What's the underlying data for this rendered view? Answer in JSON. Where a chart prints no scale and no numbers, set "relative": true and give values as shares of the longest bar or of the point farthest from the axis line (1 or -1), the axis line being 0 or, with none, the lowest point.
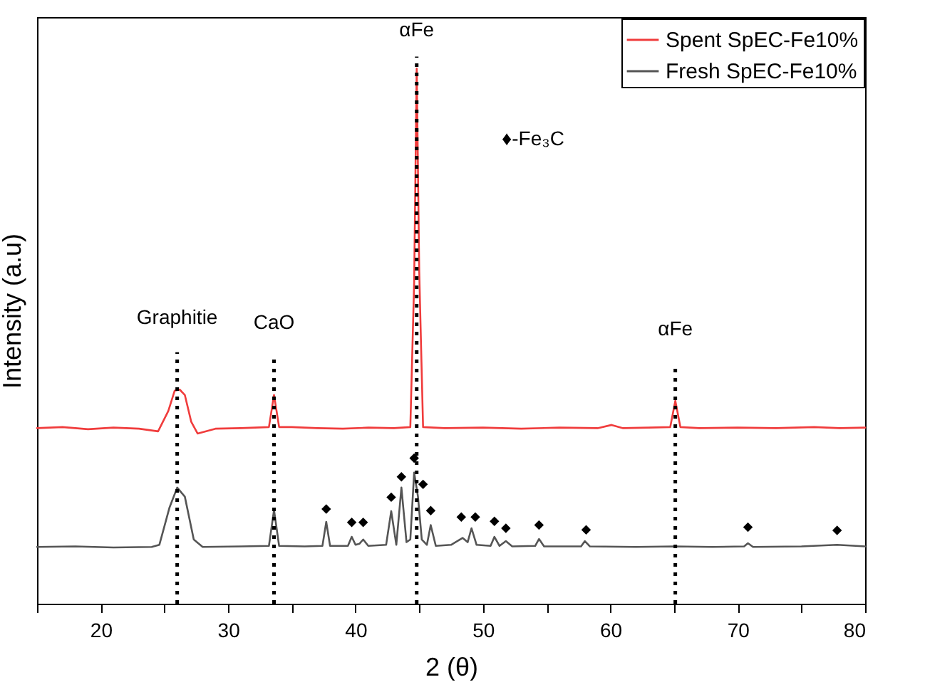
{
  "chart_data": {
    "type": "line",
    "xlabel": "2 (θ)",
    "ylabel": "Intensity (a.u)",
    "relative": true,
    "xlim": [
      15,
      80
    ],
    "xticks": [
      {
        "value": 15,
        "label": null
      },
      20,
      {
        "value": 25,
        "label": null
      },
      30,
      {
        "value": 35,
        "label": null
      },
      40,
      {
        "value": 45,
        "label": null
      },
      50,
      {
        "value": 55,
        "label": null
      },
      60,
      {
        "value": 65,
        "label": null
      },
      70,
      {
        "value": 75,
        "label": null
      },
      80
    ],
    "grid": false,
    "legend": "top right",
    "line_style": "solid",
    "series": [
      {
        "name": "Spent SpEC-Fe10%",
        "color": "#f03c3c",
        "x": [
          15,
          17,
          19,
          21,
          23,
          24.5,
          25.3,
          25.8,
          26.2,
          26.6,
          27.1,
          27.6,
          29,
          31,
          33.2,
          33.6,
          34.0,
          35,
          37,
          39,
          41,
          43,
          44.3,
          44.6,
          44.8,
          45.0,
          45.3,
          47,
          50,
          53,
          56,
          59,
          60.1,
          61,
          63,
          64.7,
          65.1,
          65.5,
          67,
          70,
          73,
          76,
          78,
          80
        ],
        "values": [
          0.328,
          0.33,
          0.326,
          0.329,
          0.327,
          0.322,
          0.36,
          0.398,
          0.4,
          0.39,
          0.34,
          0.318,
          0.327,
          0.328,
          0.33,
          0.39,
          0.33,
          0.33,
          0.328,
          0.327,
          0.329,
          0.328,
          0.33,
          0.6,
          1.0,
          0.62,
          0.33,
          0.328,
          0.329,
          0.327,
          0.329,
          0.328,
          0.334,
          0.328,
          0.329,
          0.33,
          0.379,
          0.33,
          0.328,
          0.329,
          0.328,
          0.33,
          0.328,
          0.329
        ]
      },
      {
        "name": "Fresh SpEC-Fe10%",
        "color": "#555555",
        "x": [
          15,
          18,
          21,
          24,
          24.6,
          25.4,
          26.0,
          26.6,
          27.3,
          28,
          31,
          33.2,
          33.6,
          34.0,
          36,
          37.4,
          37.7,
          38.0,
          39.4,
          39.7,
          40.0,
          40.3,
          40.6,
          41,
          42.4,
          42.8,
          43.2,
          43.6,
          44.0,
          44.3,
          44.6,
          44.9,
          45.2,
          45.6,
          45.9,
          46.3,
          47.5,
          48.4,
          48.8,
          49.1,
          49.5,
          50.6,
          50.9,
          51.3,
          51.8,
          52.3,
          54.1,
          54.4,
          54.8,
          57.7,
          58.0,
          58.4,
          62,
          65,
          68,
          70.5,
          70.8,
          71.2,
          75,
          77.8,
          80
        ],
        "values": [
          0.106,
          0.107,
          0.105,
          0.106,
          0.11,
          0.18,
          0.217,
          0.2,
          0.12,
          0.106,
          0.107,
          0.108,
          0.175,
          0.108,
          0.107,
          0.108,
          0.153,
          0.108,
          0.108,
          0.125,
          0.11,
          0.112,
          0.12,
          0.108,
          0.11,
          0.173,
          0.11,
          0.217,
          0.115,
          0.12,
          0.245,
          0.2,
          0.12,
          0.11,
          0.147,
          0.108,
          0.11,
          0.123,
          0.115,
          0.141,
          0.11,
          0.108,
          0.125,
          0.108,
          0.117,
          0.107,
          0.108,
          0.121,
          0.107,
          0.107,
          0.117,
          0.107,
          0.106,
          0.107,
          0.106,
          0.107,
          0.113,
          0.106,
          0.107,
          0.11,
          0.107
        ]
      },
      {
        "type": "scatter",
        "marker": "diamond",
        "color": "#000000",
        "x": [
          37.7,
          39.7,
          40.6,
          42.8,
          43.6,
          44.6,
          45.3,
          45.9,
          48.3,
          49.4,
          50.9,
          51.8,
          54.4,
          58.1,
          70.8,
          77.8
        ],
        "values": [
          0.177,
          0.152,
          0.152,
          0.199,
          0.237,
          0.272,
          0.223,
          0.174,
          0.162,
          0.162,
          0.154,
          0.141,
          0.147,
          0.138,
          0.143,
          0.137
        ]
      }
    ],
    "ref_lines": [
      {
        "axis": "x",
        "value": 26,
        "label": "Graphitie",
        "color": "#000000",
        "line_style": "dotted"
      },
      {
        "axis": "x",
        "value": 33.6,
        "label": "CaO",
        "color": "#000000",
        "line_style": "dotted"
      },
      {
        "axis": "x",
        "value": 44.8,
        "label": "αFe",
        "color": "#000000",
        "line_style": "dotted"
      },
      {
        "axis": "x",
        "value": 65.1,
        "label": "αFe",
        "color": "#000000",
        "line_style": "dotted"
      }
    ],
    "annotations": [
      "♦-Fe₃C"
    ]
  }
}
